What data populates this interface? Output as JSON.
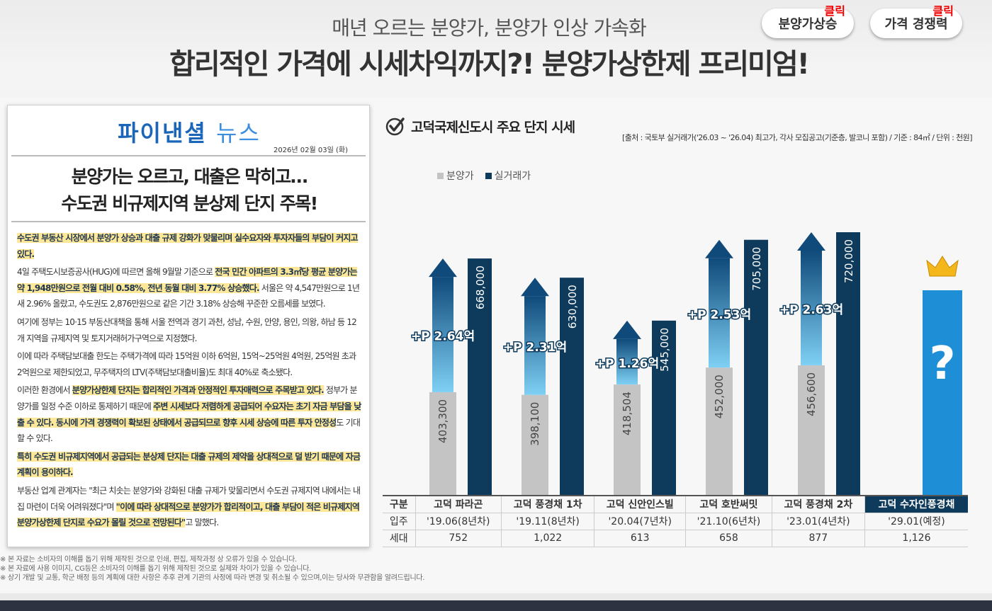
{
  "header": {
    "subtitle": "매년 오르는 분양가, 분양가 인상 가속화",
    "title": "합리적인 가격에 시세차익까지?! 분양가상한제 프리미엄!",
    "buttons": [
      {
        "label": "분양가상승",
        "click": "클릭"
      },
      {
        "label": "가격 경쟁력",
        "click": "클릭"
      }
    ]
  },
  "article": {
    "logo_a": "파이낸셜",
    "logo_b": "뉴스",
    "date": "2026년 02월 03일 (화)",
    "headline_1": "분양가는 오르고, 대출은 막히고…",
    "headline_2": "수도권 비규제지역 분상제 단지 주목!",
    "p1_hl": "수도권 부동산 시장에서 분양가 상승과 대출 규제 강화가 맞물리며 실수요자와 투자자들의 부담이 커지고 있다.",
    "p2_a": "4일 주택도시보증공사(HUG)에 따르면 올해 9월말 기준으로 ",
    "p2_hl": "전국 민간 아파트의 3.3㎡당 평균 분양가는 약 1,948만원으로 전월 대비 0.58%, 전년 동월 대비 3.77% 상승했다.",
    "p2_b": " 서울은 약 4,547만원으로 1년 새 2.96% 올랐고, 수도권도 2,876만원으로 같은 기간 3.18% 상승해 꾸준한 오름세를 보였다.",
    "p3": "여기에 정부는 10·15 부동산대책을 통해 서울 전역과 경기 과천, 성남, 수원, 안양, 용인, 의왕, 하남 등 12개 지역을 규제지역 및 토지거래허가구역으로 지정했다.",
    "p4": "이에 따라 주택담보대출 한도는 주택가격에 따라 15억원 이하 6억원, 15억~25억원 4억원, 25억원 초과 2억원으로 제한되었고, 무주택자의 LTV(주택담보대출비율)도 최대 40%로 축소됐다.",
    "p5_a": "이러한 환경에서 ",
    "p5_hl": "분양가상한제 단지는 합리적인 가격과 안정적인 투자매력으로 주목받고 있다.",
    "p5_b": " 정부가 분양가를 일정 수준 이하로 통제하기 때문에 ",
    "p5_hl2": "주변 시세보다 저렴하게 공급되어 수요자는 초기 자금 부담을 낮출 수 있다. 동시에 가격 경쟁력이 확보된 상태에서 공급되므로 향후 시세 상승에 따른 투자 안정성",
    "p5_c": "도 기대할 수 있다.",
    "p6_hl": "특히 수도권 비규제지역에서 공급되는 분상제 단지는 대출 규제의 제약을 상대적으로 덜 받기 때문에 자금 계획이 용이하다.",
    "p7_a": "부동산 업계 관계자는 \"최근 치솟는 분양가와 강화된 대출 규제가 맞물리면서 수도권 규제지역 내에서는 내 집 마련이 더욱 어려워졌다\"며 ",
    "p7_hl": "\"이에 따라 상대적으로 분양가가 합리적이고, 대출 부담이 적은 비규제지역 분양가상한제 단지로 수요가 몰릴 것으로 전망된다\"",
    "p7_b": "고 말했다."
  },
  "chart_section": {
    "title": "고덕국제신도시 주요 단지 시세",
    "source": "[출처 : 국토부 실거래가('26.03 ~ '26.04) 최고가, 각사 모집공고(기준층, 발코니 포함) / 기준 : 84㎡ / 단위 : 천원]"
  },
  "chart_data": {
    "type": "bar",
    "categories": [
      "고덕 파라곤",
      "고덕 풍경채 1차",
      "고덕 신안인스빌",
      "고덕 호반써밋",
      "고덕 풍경채 2차",
      "고덕 수자인풍경채"
    ],
    "series": [
      {
        "name": "분양가",
        "values": [
          403300,
          398100,
          418504,
          452000,
          456600,
          null
        ],
        "labels": [
          "403,300",
          "398,100",
          "418,504",
          "452,000",
          "456,600",
          "?"
        ],
        "color": "#c4c4c4"
      },
      {
        "name": "실거래가",
        "values": [
          668000,
          630000,
          545000,
          705000,
          720000,
          null
        ],
        "labels": [
          "668,000",
          "630,000",
          "545,000",
          "705,000",
          "720,000",
          ""
        ],
        "color": "#0e3a5c"
      }
    ],
    "premiums": [
      "+P 2.64억",
      "+P 2.31억",
      "+P 1.26억",
      "+P 2.53억",
      "+P 2.63억",
      ""
    ],
    "highlight_color": "#1e8fd6",
    "highlight_index": 5,
    "ylim": [
      0,
      800000
    ],
    "baseline": 200000
  },
  "table": {
    "headers": [
      "구분",
      "고덕 파라곤",
      "고덕 풍경채 1차",
      "고덕 신안인스빌",
      "고덕 호반써밋",
      "고덕 풍경채 2차",
      "고덕 수자인풍경채"
    ],
    "rows": [
      [
        "입주",
        "'19.06(8년차)",
        "'19.11(8년차)",
        "'20.04(7년차)",
        "'21.10(6년차)",
        "'23.01(4년차)",
        "'29.01(예정)"
      ],
      [
        "세대",
        "752",
        "1,022",
        "613",
        "658",
        "877",
        "1,126"
      ]
    ]
  },
  "notes": [
    "※ 본 자료는 소비자의 이해를 돕기 위해 제작된 것으로 인쇄, 편집, 제작과정 상 오류가 있을 수 있습니다.",
    "※ 본 자료에 사용 이미지, CG등은 소비자의 이해를 돕기 위해 제작된 것으로 실제와 차이가 있을 수 있습니다.",
    "※ 상기 개발 및 교통, 학군 배정 등의 계획에 대한 사항은 추후 관계 기관의 사정에 따라 변경 및 취소될 수 있으며,이는 당사와 무관함을 알려드립니다."
  ]
}
